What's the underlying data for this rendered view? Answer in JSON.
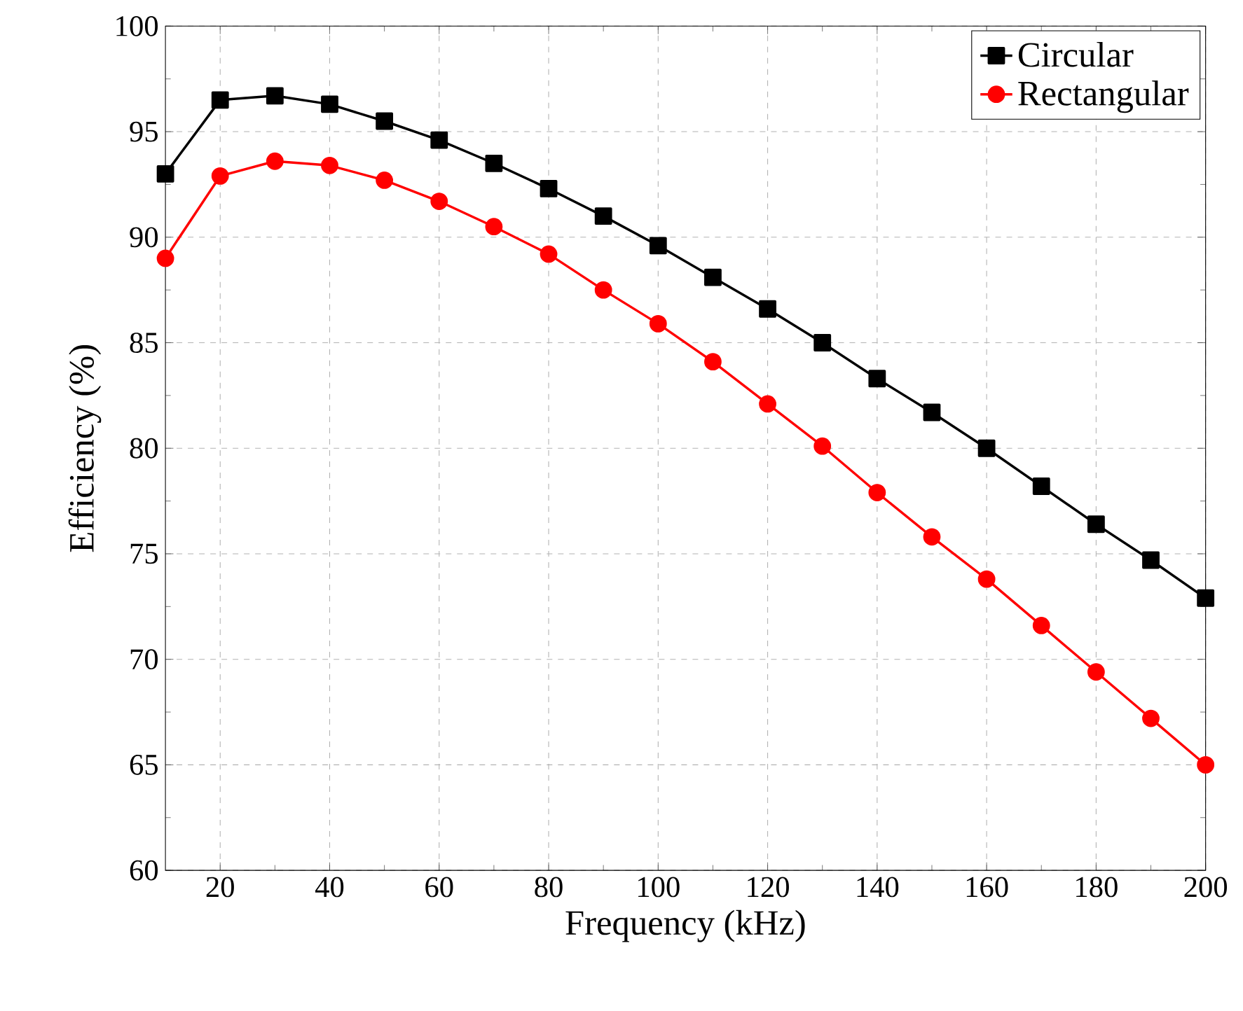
{
  "chart_data": {
    "type": "line",
    "xlabel": "Frequency (kHz)",
    "ylabel": "Efficiency (%)",
    "x": [
      10,
      20,
      30,
      40,
      50,
      60,
      70,
      80,
      90,
      100,
      110,
      120,
      130,
      140,
      150,
      160,
      170,
      180,
      190,
      200
    ],
    "series": [
      {
        "name": "Circular",
        "color": "#000000",
        "marker": "square",
        "values": [
          93.0,
          96.5,
          96.7,
          96.3,
          95.5,
          94.6,
          93.5,
          92.3,
          91.0,
          89.6,
          88.1,
          86.6,
          85.0,
          83.3,
          81.7,
          80.0,
          78.2,
          76.4,
          74.7,
          72.9
        ]
      },
      {
        "name": "Rectangular",
        "color": "#ff0000",
        "marker": "circle",
        "values": [
          89.0,
          92.9,
          93.6,
          93.4,
          92.7,
          91.7,
          90.5,
          89.2,
          87.5,
          85.9,
          84.1,
          82.1,
          80.1,
          77.9,
          75.8,
          73.8,
          71.6,
          69.4,
          67.2,
          65.0
        ]
      }
    ],
    "xlim": [
      10,
      200
    ],
    "xticks": [
      20,
      40,
      60,
      80,
      100,
      120,
      140,
      160,
      180,
      200
    ],
    "ylim": [
      60,
      100
    ],
    "yticks": [
      60,
      65,
      70,
      75,
      80,
      85,
      90,
      95,
      100
    ],
    "grid": true,
    "legend": "top right",
    "line_style": "solid"
  }
}
